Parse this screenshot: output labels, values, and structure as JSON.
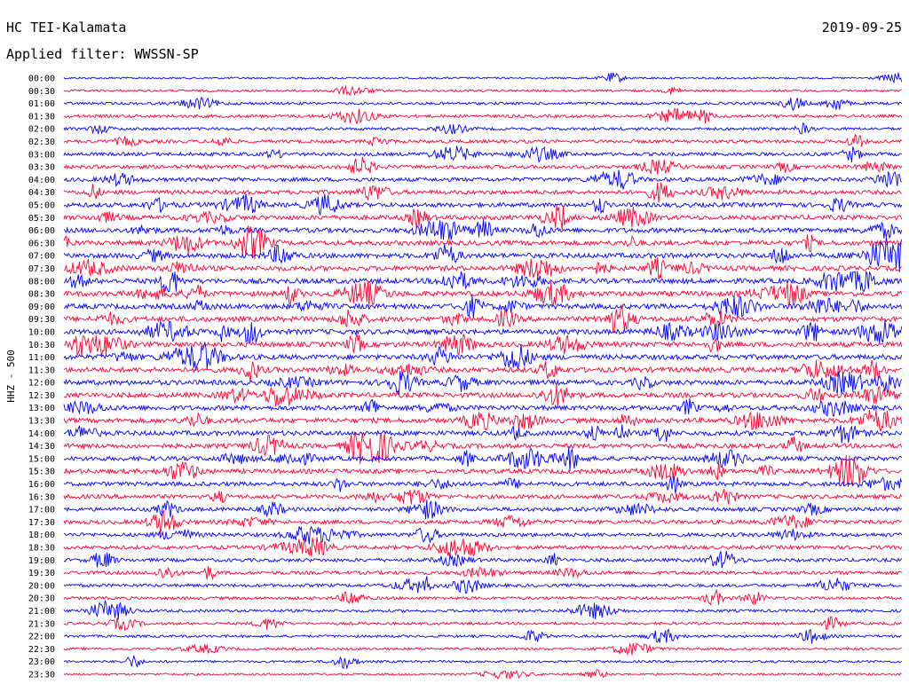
{
  "header": {
    "station": "HC TEI-Kalamata",
    "date": "2019-09-25",
    "filter": "Applied filter: WWSSN-SP"
  },
  "chart_data": {
    "type": "line",
    "title": "HC TEI-Kalamata",
    "subtitle": "Applied filter: WWSSN-SP",
    "date": "2019-09-25",
    "ylabel": "HHZ - 500",
    "xlabel": "",
    "row_interval_minutes": 30,
    "series_colors": [
      "#0000ff",
      "#ff0033"
    ],
    "row_labels": [
      "00:00",
      "00:30",
      "01:00",
      "01:30",
      "02:00",
      "02:30",
      "03:00",
      "03:30",
      "04:00",
      "04:30",
      "05:00",
      "05:30",
      "06:00",
      "06:30",
      "07:00",
      "07:30",
      "08:00",
      "08:30",
      "09:00",
      "09:30",
      "10:00",
      "10:30",
      "11:00",
      "11:30",
      "12:00",
      "12:30",
      "13:00",
      "13:30",
      "14:00",
      "14:30",
      "15:00",
      "15:30",
      "16:00",
      "16:30",
      "17:00",
      "17:30",
      "18:00",
      "18:30",
      "19:00",
      "19:30",
      "20:00",
      "20:30",
      "21:00",
      "21:30",
      "22:00",
      "22:30",
      "23:00",
      "23:30"
    ],
    "noise_level": [
      0.6,
      0.8,
      1.1,
      1.3,
      1.2,
      1.5,
      1.6,
      1.7,
      1.9,
      2.0,
      2.2,
      2.3,
      2.4,
      2.4,
      2.5,
      2.5,
      2.6,
      2.6,
      2.6,
      2.6,
      2.6,
      2.5,
      2.6,
      2.6,
      2.5,
      2.5,
      2.4,
      2.4,
      2.4,
      2.3,
      2.2,
      2.2,
      2.1,
      2.0,
      1.9,
      1.8,
      1.8,
      1.7,
      1.6,
      1.6,
      1.4,
      1.3,
      1.2,
      1.1,
      1.0,
      0.9,
      0.9,
      0.8
    ]
  }
}
